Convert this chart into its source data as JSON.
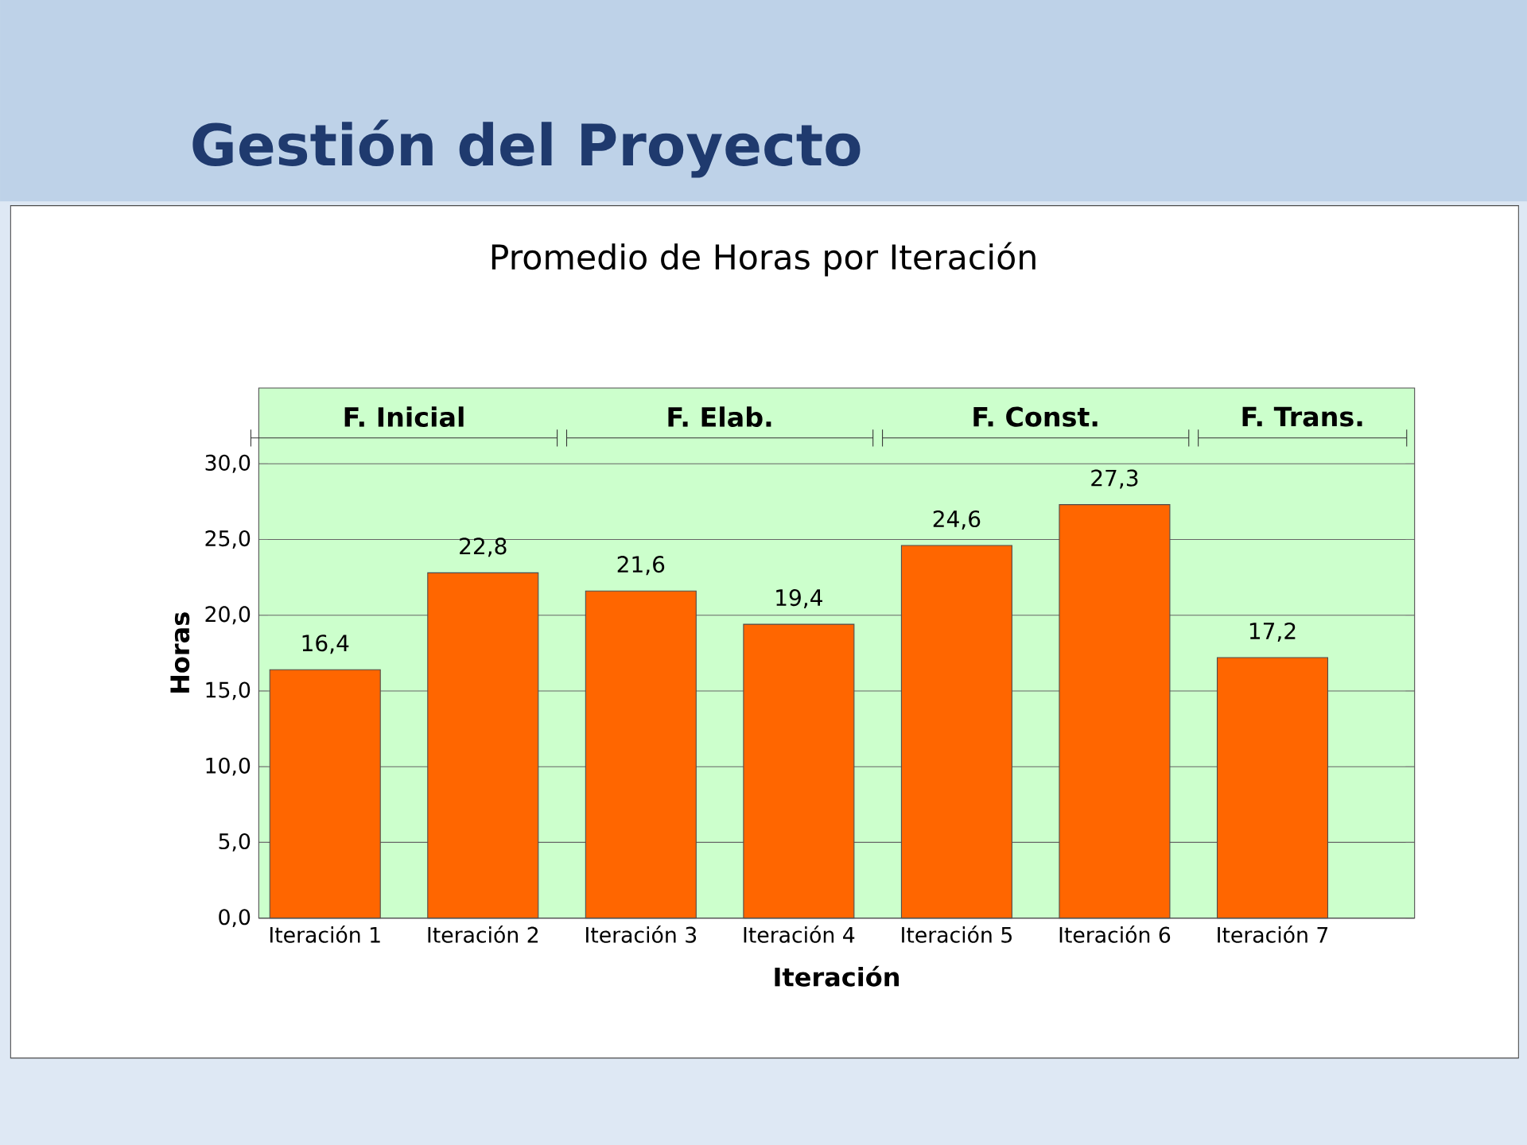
{
  "chart_data": {
    "type": "bar",
    "title": "Gestión del Proyecto",
    "subtitle": "Promedio de Horas por Iteración",
    "xlabel": "Iteración",
    "ylabel": "Horas",
    "categories": [
      "Iteración 1",
      "Iteración 2",
      "Iteración 3",
      "Iteración 4",
      "Iteración 5",
      "Iteración 6",
      "Iteración 7"
    ],
    "values": [
      16.4,
      22.8,
      21.6,
      19.4,
      24.6,
      27.3,
      17.2
    ],
    "value_labels": [
      "16,4",
      "22,8",
      "21,6",
      "19,4",
      "24,6",
      "27,3",
      "17,2"
    ],
    "color": "#ff6600",
    "ylim": [
      0,
      35
    ],
    "yticks": [
      {
        "value": 0,
        "label": "0,0"
      },
      {
        "value": 5,
        "label": "5,0"
      },
      {
        "value": 10,
        "label": "10,0"
      },
      {
        "value": 15,
        "label": "15,0"
      },
      {
        "value": 20,
        "label": "20,0"
      },
      {
        "value": 25,
        "label": "25,0"
      },
      {
        "value": 30,
        "label": "30,0"
      }
    ],
    "grid": "y",
    "annotations": [
      "F. Inicial",
      "F. Elab.",
      "F. Const.",
      "F. Trans."
    ]
  }
}
